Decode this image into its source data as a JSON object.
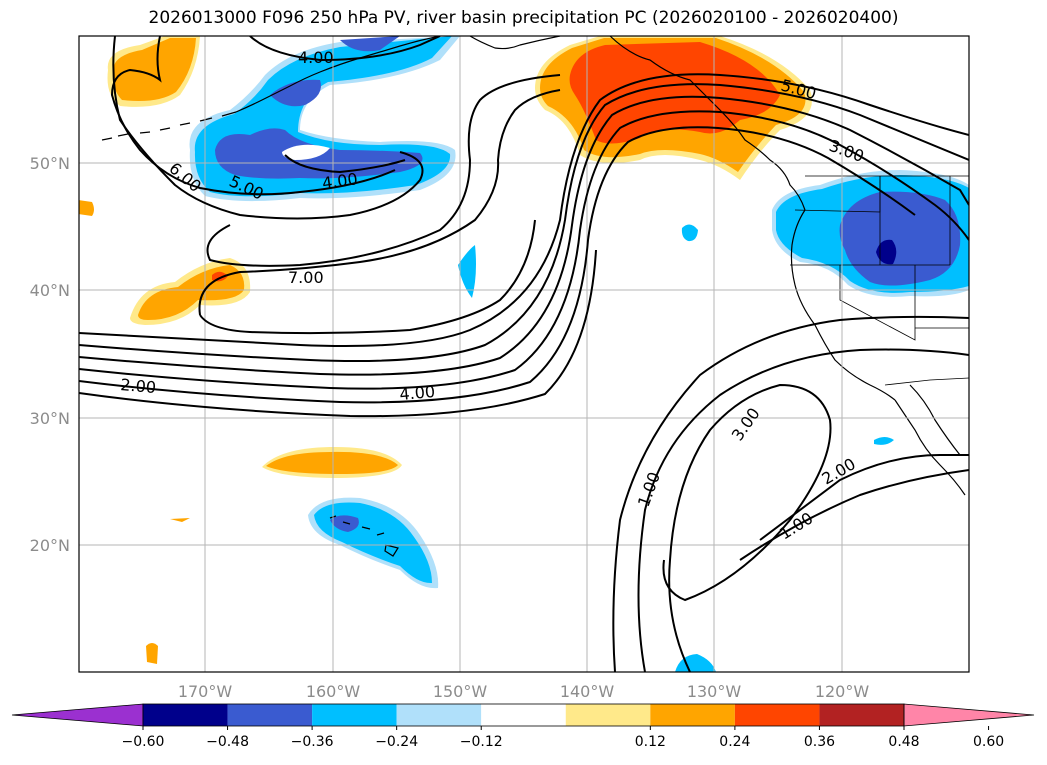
{
  "title": "2026013000 F096 250 hPa PV, river basin precipitation PC (2026020100 - 2026020400)",
  "axes": {
    "lat_labels": [
      "50°N",
      "40°N",
      "30°N",
      "20°N"
    ],
    "lon_labels": [
      "170°W",
      "160°W",
      "150°W",
      "140°W",
      "130°W",
      "120°W"
    ]
  },
  "contour_labels": [
    "4.00",
    "6.00",
    "5.00",
    "4.00",
    "7.00",
    "2.00",
    "4.00",
    "5.00",
    "3.00",
    "3.00",
    "1.00",
    "2.00",
    "1.00"
  ],
  "colorbar": {
    "ticks": [
      "−0.60",
      "−0.48",
      "−0.36",
      "−0.24",
      "−0.12",
      "0.12",
      "0.24",
      "0.36",
      "0.48",
      "0.60"
    ],
    "colors": [
      "#9b30d0",
      "#00008b",
      "#3a5bd0",
      "#00bfff",
      "#b0e0fa",
      "#ffffff",
      "#ffe98a",
      "#ffa500",
      "#ff4500",
      "#b22222",
      "#ff85a8"
    ]
  },
  "fill_colors": {
    "light_blue": "#b0e0fa",
    "blue": "#00bfff",
    "royal": "#3a5bd0",
    "navy": "#00008b",
    "yellow": "#ffe98a",
    "orange": "#ffa500",
    "red_orange": "#ff4500"
  }
}
